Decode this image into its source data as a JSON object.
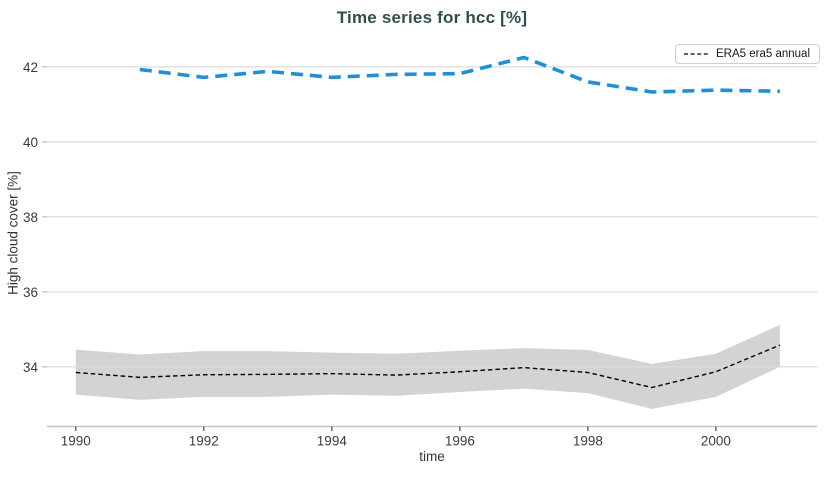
{
  "chart_data": {
    "type": "line",
    "title": "Time series for hcc [%]",
    "title_color": "#2f4f4f",
    "xlabel": "time",
    "ylabel": "High cloud cover [%]",
    "x_ticks": [
      1990,
      1992,
      1994,
      1996,
      1998,
      2000
    ],
    "y_ticks": [
      34,
      36,
      38,
      40,
      42
    ],
    "xlim": [
      1989.55,
      2001.58
    ],
    "ylim": [
      32.41,
      42.77
    ],
    "grid": true,
    "grid_color": "#dcdcdc",
    "axis_line_color": "#c6c6c6",
    "tick_label_color": "#3b3b3b",
    "legend": {
      "position": "top-right",
      "entries": [
        {
          "label": "ERA5 era5 annual",
          "color": "#000000",
          "style": "dashed"
        }
      ]
    },
    "series": [
      {
        "name": "ERA5 era5 annual",
        "color": "#000000",
        "line_width": 1.4,
        "dash": "4.5 3",
        "x": [
          1990,
          1991,
          1992,
          1993,
          1994,
          1995,
          1996,
          1997,
          1998,
          1999,
          2000,
          2001
        ],
        "y": [
          33.85,
          33.72,
          33.79,
          33.8,
          33.82,
          33.78,
          33.87,
          33.98,
          33.85,
          33.45,
          33.87,
          34.58
        ],
        "band": {
          "color": "rgba(150,150,150,0.42)",
          "upper": [
            34.46,
            34.33,
            34.42,
            34.42,
            34.38,
            34.35,
            34.43,
            34.5,
            34.45,
            34.08,
            34.35,
            35.12
          ],
          "lower": [
            33.26,
            33.12,
            33.2,
            33.2,
            33.26,
            33.23,
            33.33,
            33.42,
            33.3,
            32.88,
            33.2,
            34.0
          ]
        }
      },
      {
        "name": "",
        "color": "#1f90d8",
        "line_width": 3.6,
        "dash": "12 7",
        "x": [
          1991,
          1992,
          1993,
          1994,
          1995,
          1996,
          1997,
          1998,
          1999,
          2000,
          2001
        ],
        "y": [
          41.93,
          41.72,
          41.88,
          41.72,
          41.8,
          41.82,
          42.25,
          41.6,
          41.33,
          41.38,
          41.35
        ]
      }
    ]
  }
}
